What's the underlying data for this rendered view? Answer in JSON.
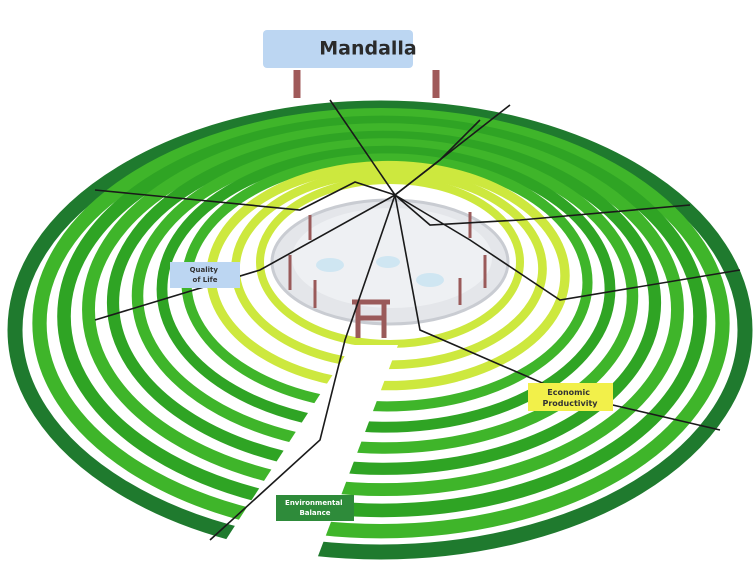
{
  "title": "Mandalla",
  "labels": [
    {
      "lines": [
        "Quality",
        "of Life"
      ]
    },
    {
      "lines": [
        "Economic",
        "Productivity"
      ]
    },
    {
      "lines": [
        "Environmental",
        "Balance"
      ]
    }
  ]
}
